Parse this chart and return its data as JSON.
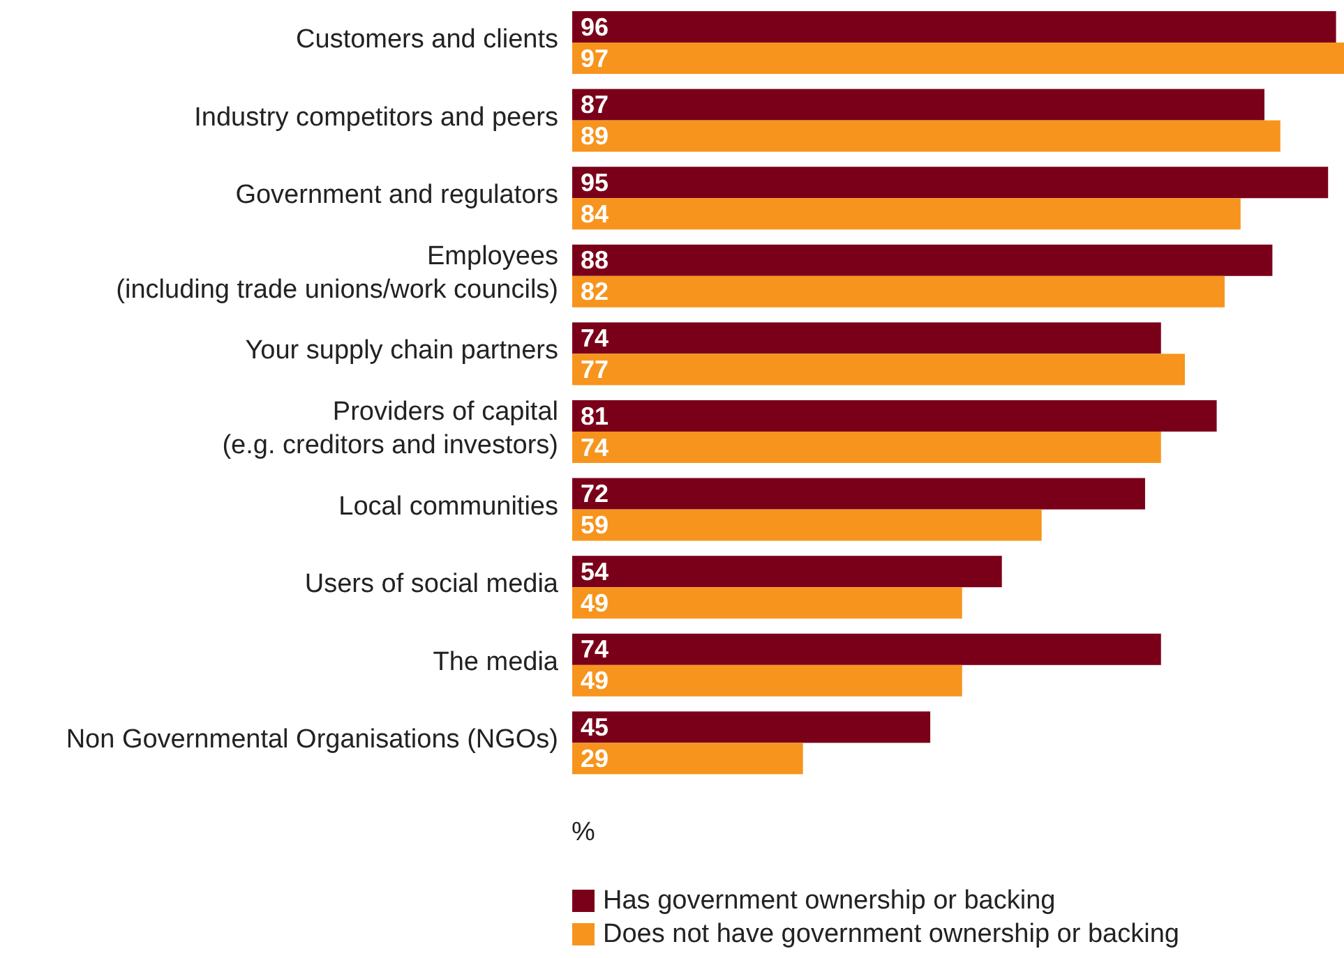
{
  "chart_data": {
    "type": "bar",
    "orientation": "horizontal",
    "xlabel": "%",
    "data_labels": true,
    "legend": "bottom left",
    "categories": [
      "Customers and clients",
      "Industry competitors and peers",
      "Government and regulators",
      "Employees\n(including trade unions/work councils)",
      "Your supply chain partners",
      "Providers of capital\n(e.g. creditors and investors)",
      "Local communities",
      "Users of social media",
      "The media",
      "Non Governmental Organisations (NGOs)"
    ],
    "series": [
      {
        "name": "Has government ownership or backing",
        "color": "#7a0019",
        "values": [
          96,
          87,
          95,
          88,
          74,
          81,
          72,
          54,
          74,
          45
        ]
      },
      {
        "name": "Does not have government ownership or backing",
        "color": "#f7941d",
        "values": [
          97,
          89,
          84,
          82,
          77,
          74,
          59,
          49,
          49,
          29
        ]
      }
    ]
  }
}
